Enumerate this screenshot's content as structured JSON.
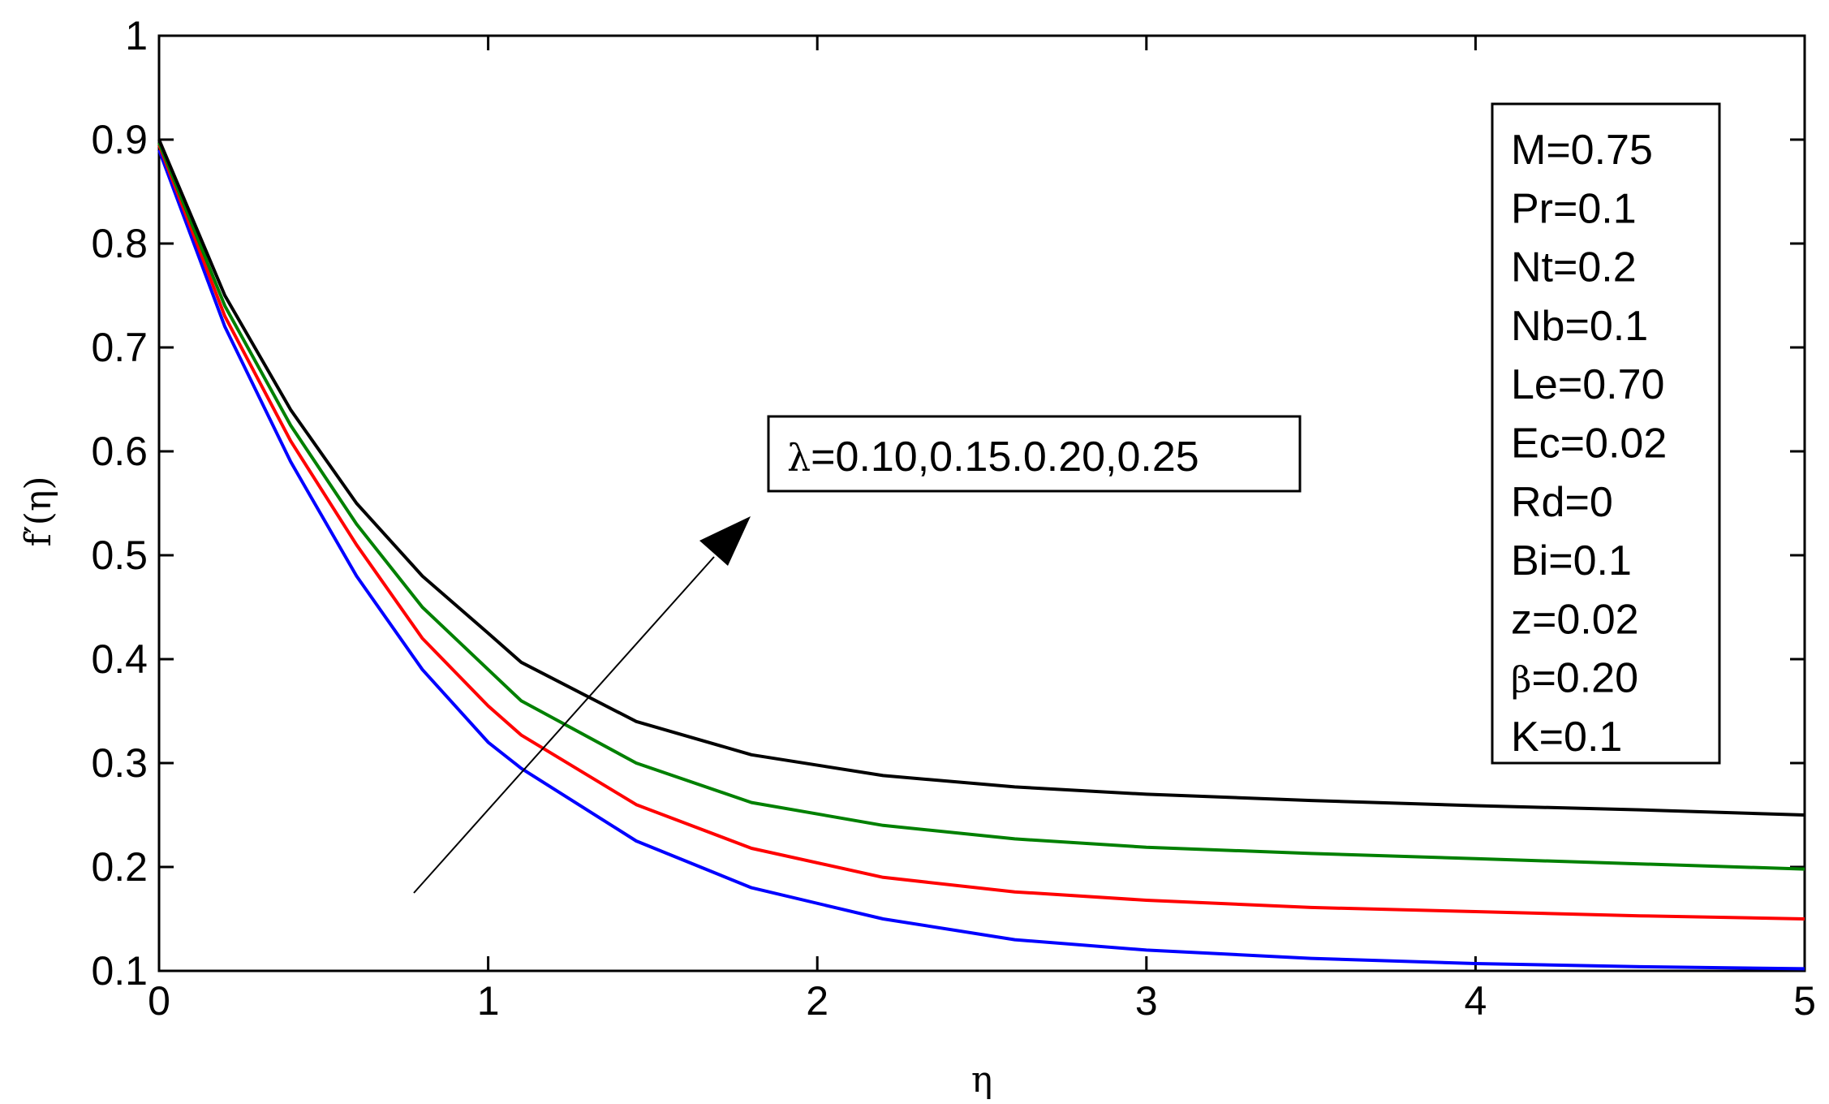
{
  "chart_data": {
    "type": "line",
    "xlabel": "η",
    "ylabel": "f′(η)",
    "xlim": [
      0,
      5
    ],
    "ylim": [
      0.1,
      1
    ],
    "xticks": [
      "0",
      "1",
      "2",
      "3",
      "4",
      "5"
    ],
    "yticks": [
      "0.1",
      "0.2",
      "0.3",
      "0.4",
      "0.5",
      "0.6",
      "0.7",
      "0.8",
      "0.9",
      "1"
    ],
    "grid": false,
    "x": [
      0,
      0.2,
      0.4,
      0.6,
      0.8,
      1.0,
      1.1,
      1.45,
      1.8,
      2.2,
      2.6,
      3.0,
      3.5,
      4.0,
      4.5,
      5.0
    ],
    "series": [
      {
        "color": "#0000ff",
        "values": [
          0.89,
          0.72,
          0.59,
          0.48,
          0.39,
          0.32,
          0.295,
          0.225,
          0.18,
          0.15,
          0.13,
          0.12,
          0.112,
          0.107,
          0.104,
          0.102
        ]
      },
      {
        "color": "#ff0000",
        "values": [
          0.895,
          0.73,
          0.61,
          0.51,
          0.42,
          0.355,
          0.327,
          0.26,
          0.218,
          0.19,
          0.176,
          0.168,
          0.161,
          0.157,
          0.153,
          0.15
        ]
      },
      {
        "color": "#008000",
        "values": [
          0.897,
          0.74,
          0.625,
          0.53,
          0.45,
          0.39,
          0.36,
          0.3,
          0.262,
          0.24,
          0.227,
          0.219,
          0.213,
          0.208,
          0.203,
          0.198
        ]
      },
      {
        "color": "#000000",
        "values": [
          0.9,
          0.75,
          0.64,
          0.55,
          0.48,
          0.425,
          0.397,
          0.34,
          0.308,
          0.288,
          0.277,
          0.27,
          0.264,
          0.259,
          0.255,
          0.25
        ]
      }
    ],
    "annotation": {
      "text_symbol": "λ",
      "text_rest": "=0.10,0.15.0.20,0.25"
    },
    "param_box": [
      {
        "sym": "",
        "text": "M=0.75"
      },
      {
        "sym": "",
        "text": "Pr=0.1"
      },
      {
        "sym": "",
        "text": "Nt=0.2"
      },
      {
        "sym": "",
        "text": "Nb=0.1"
      },
      {
        "sym": "",
        "text": "Le=0.70"
      },
      {
        "sym": "",
        "text": "Ec=0.02"
      },
      {
        "sym": "",
        "text": "Rd=0"
      },
      {
        "sym": "",
        "text": "Bi=0.1"
      },
      {
        "sym": "",
        "text": "z=0.02"
      },
      {
        "sym": "β",
        "text": "=0.20"
      },
      {
        "sym": "",
        "text": "K=0.1"
      }
    ]
  }
}
